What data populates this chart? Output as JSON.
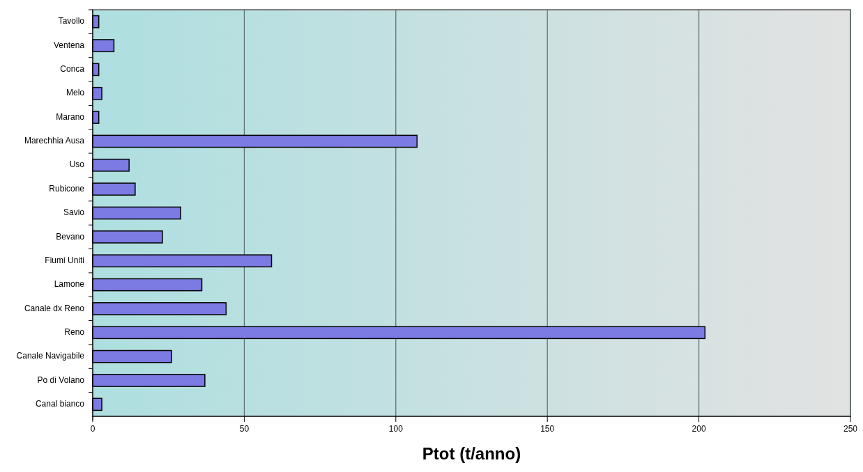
{
  "chart_data": {
    "type": "bar",
    "orientation": "horizontal",
    "xlabel": "Ptot (t/anno)",
    "categories": [
      "Tavollo",
      "Ventena",
      "Conca",
      "Melo",
      "Marano",
      "Marechhia Ausa",
      "Uso",
      "Rubicone",
      "Savio",
      "Bevano",
      "Fiumi Uniti",
      "Lamone",
      "Canale dx Reno",
      "Reno",
      "Canale Navigabile",
      "Po di Volano",
      "Canal bianco"
    ],
    "values": [
      2,
      7,
      2,
      3,
      2,
      107,
      12,
      14,
      29,
      23,
      59,
      36,
      44,
      202,
      26,
      37,
      3
    ],
    "color": "#7b7be3",
    "xlim": [
      0,
      250
    ],
    "xticks": [
      0,
      50,
      100,
      150,
      200,
      250
    ],
    "grid": "x"
  }
}
